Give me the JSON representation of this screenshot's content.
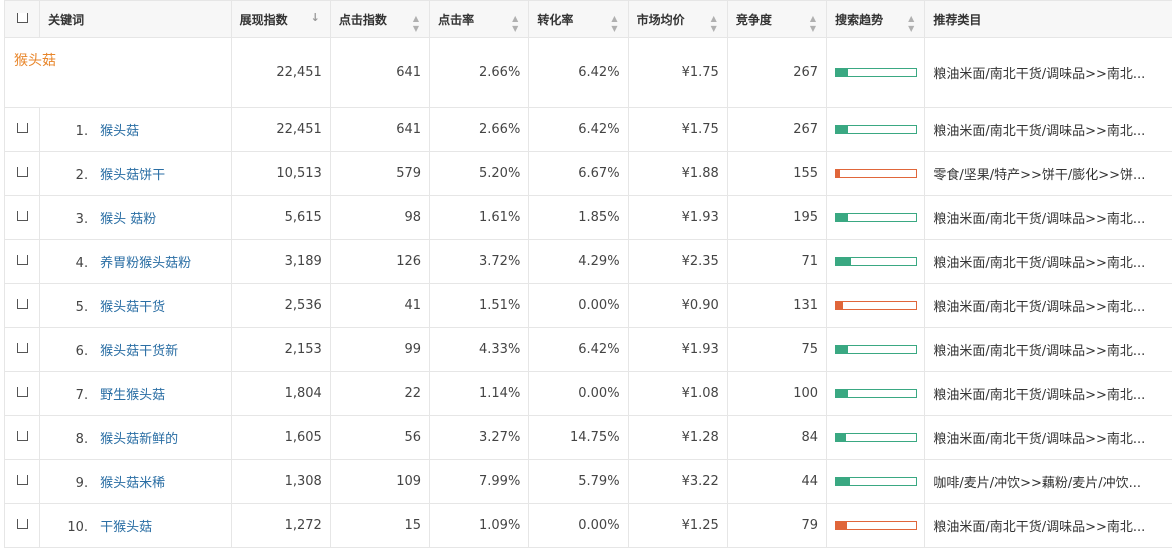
{
  "headers": {
    "keyword": "关键词",
    "impressions": "展现指数",
    "clicks": "点击指数",
    "ctr": "点击率",
    "conversion": "转化率",
    "avg_price": "市场均价",
    "competition": "竞争度",
    "trend": "搜索趋势",
    "category": "推荐类目"
  },
  "colors": {
    "trend_up": "#3aa882",
    "trend_down": "#e0663a",
    "group_label": "#e8862b",
    "keyword_link": "#2a6ea4"
  },
  "summary": {
    "keyword": "猴头菇",
    "impressions": "22,451",
    "clicks": "641",
    "ctr": "2.66%",
    "conversion": "6.42%",
    "avg_price": "¥1.75",
    "competition": "267",
    "trend": {
      "direction": "up",
      "level": 0.15
    },
    "category": "粮油米面/南北干货/调味品>>南北..."
  },
  "rows": [
    {
      "rank": "1.",
      "keyword": "猴头菇",
      "impressions": "22,451",
      "clicks": "641",
      "ctr": "2.66%",
      "conversion": "6.42%",
      "avg_price": "¥1.75",
      "competition": "267",
      "trend": {
        "direction": "up",
        "level": 0.15
      },
      "category": "粮油米面/南北干货/调味品>>南北..."
    },
    {
      "rank": "2.",
      "keyword": "猴头菇饼干",
      "impressions": "10,513",
      "clicks": "579",
      "ctr": "5.20%",
      "conversion": "6.67%",
      "avg_price": "¥1.88",
      "competition": "155",
      "trend": {
        "direction": "down",
        "level": 0.05
      },
      "category": "零食/坚果/特产>>饼干/膨化>>饼..."
    },
    {
      "rank": "3.",
      "keyword": "猴头 菇粉",
      "impressions": "5,615",
      "clicks": "98",
      "ctr": "1.61%",
      "conversion": "1.85%",
      "avg_price": "¥1.93",
      "competition": "195",
      "trend": {
        "direction": "up",
        "level": 0.15
      },
      "category": "粮油米面/南北干货/调味品>>南北..."
    },
    {
      "rank": "4.",
      "keyword": "养胃粉猴头菇粉",
      "impressions": "3,189",
      "clicks": "126",
      "ctr": "3.72%",
      "conversion": "4.29%",
      "avg_price": "¥2.35",
      "competition": "71",
      "trend": {
        "direction": "up",
        "level": 0.19
      },
      "category": "粮油米面/南北干货/调味品>>南北..."
    },
    {
      "rank": "5.",
      "keyword": "猴头菇干货",
      "impressions": "2,536",
      "clicks": "41",
      "ctr": "1.51%",
      "conversion": "0.00%",
      "avg_price": "¥0.90",
      "competition": "131",
      "trend": {
        "direction": "down",
        "level": 0.09
      },
      "category": "粮油米面/南北干货/调味品>>南北..."
    },
    {
      "rank": "6.",
      "keyword": "猴头菇干货新",
      "impressions": "2,153",
      "clicks": "99",
      "ctr": "4.33%",
      "conversion": "6.42%",
      "avg_price": "¥1.93",
      "competition": "75",
      "trend": {
        "direction": "up",
        "level": 0.15
      },
      "category": "粮油米面/南北干货/调味品>>南北..."
    },
    {
      "rank": "7.",
      "keyword": "野生猴头菇",
      "impressions": "1,804",
      "clicks": "22",
      "ctr": "1.14%",
      "conversion": "0.00%",
      "avg_price": "¥1.08",
      "competition": "100",
      "trend": {
        "direction": "up",
        "level": 0.15
      },
      "category": "粮油米面/南北干货/调味品>>南北..."
    },
    {
      "rank": "8.",
      "keyword": "猴头菇新鲜的",
      "impressions": "1,605",
      "clicks": "56",
      "ctr": "3.27%",
      "conversion": "14.75%",
      "avg_price": "¥1.28",
      "competition": "84",
      "trend": {
        "direction": "up",
        "level": 0.12
      },
      "category": "粮油米面/南北干货/调味品>>南北..."
    },
    {
      "rank": "9.",
      "keyword": "猴头菇米稀",
      "impressions": "1,308",
      "clicks": "109",
      "ctr": "7.99%",
      "conversion": "5.79%",
      "avg_price": "¥3.22",
      "competition": "44",
      "trend": {
        "direction": "up",
        "level": 0.17
      },
      "category": "咖啡/麦片/冲饮>>藕粉/麦片/冲饮..."
    },
    {
      "rank": "10.",
      "keyword": "干猴头菇",
      "impressions": "1,272",
      "clicks": "15",
      "ctr": "1.09%",
      "conversion": "0.00%",
      "avg_price": "¥1.25",
      "competition": "79",
      "trend": {
        "direction": "down",
        "level": 0.14
      },
      "category": "粮油米面/南北干货/调味品>>南北..."
    }
  ]
}
